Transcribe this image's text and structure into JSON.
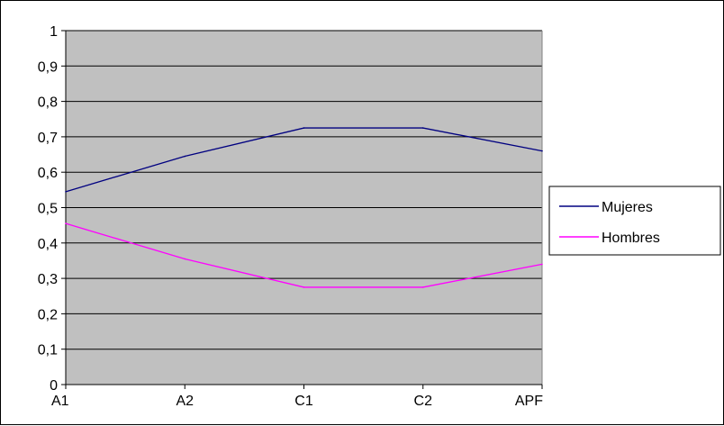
{
  "chart_data": {
    "type": "line",
    "title": "",
    "xlabel": "",
    "ylabel": "",
    "categories": [
      "A1",
      "A2",
      "C1",
      "C2",
      "APF"
    ],
    "y_ticks": [
      "0",
      "0,1",
      "0,2",
      "0,3",
      "0,4",
      "0,5",
      "0,6",
      "0,7",
      "0,8",
      "0,9",
      "1"
    ],
    "ylim": [
      0,
      1
    ],
    "grid": true,
    "legend_position": "right",
    "plot_background": "#C0C0C0",
    "series": [
      {
        "name": "Mujeres",
        "color": "#000080",
        "values": [
          0.545,
          0.645,
          0.725,
          0.725,
          0.66
        ]
      },
      {
        "name": "Hombres",
        "color": "#FF00FF",
        "values": [
          0.455,
          0.355,
          0.275,
          0.275,
          0.34
        ]
      }
    ]
  }
}
